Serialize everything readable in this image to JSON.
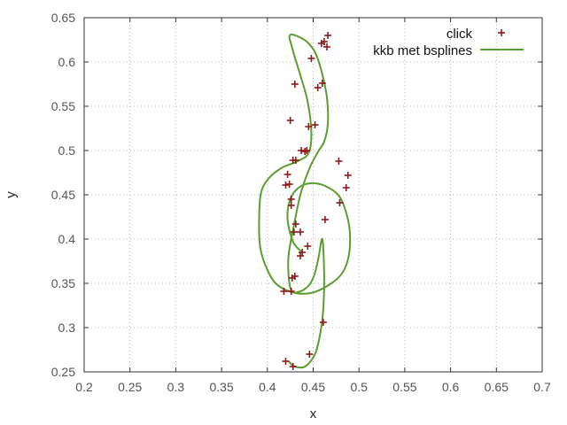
{
  "chart_data": {
    "type": "scatter",
    "xlabel": "x",
    "ylabel": "y",
    "xlim": [
      0.2,
      0.7
    ],
    "ylim": [
      0.25,
      0.65
    ],
    "x_ticks": [
      "0.2",
      "0.25",
      "0.3",
      "0.35",
      "0.4",
      "0.45",
      "0.5",
      "0.55",
      "0.6",
      "0.65",
      "0.7"
    ],
    "y_ticks": [
      "0.25",
      "0.3",
      "0.35",
      "0.4",
      "0.45",
      "0.5",
      "0.55",
      "0.6",
      "0.65"
    ],
    "grid": true,
    "legend_position": "top-right",
    "series": [
      {
        "name": "click",
        "kind": "points",
        "marker": "plus",
        "color": "#8b1a1a",
        "x": [
          0.438,
          0.429,
          0.426,
          0.42,
          0.422,
          0.428,
          0.437,
          0.445,
          0.455,
          0.465,
          0.466,
          0.462,
          0.448,
          0.43,
          0.425,
          0.443,
          0.478,
          0.488,
          0.486,
          0.479,
          0.463,
          0.444,
          0.427,
          0.418,
          0.426,
          0.43,
          0.436,
          0.436,
          0.431,
          0.426,
          0.424,
          0.431,
          0.441,
          0.452,
          0.46,
          0.459,
          0.461,
          0.446,
          0.428,
          0.42
        ],
        "y": [
          0.385,
          0.408,
          0.438,
          0.461,
          0.473,
          0.489,
          0.5,
          0.527,
          0.571,
          0.617,
          0.63,
          0.623,
          0.604,
          0.575,
          0.534,
          0.5,
          0.488,
          0.472,
          0.458,
          0.441,
          0.422,
          0.392,
          0.356,
          0.341,
          0.341,
          0.358,
          0.381,
          0.408,
          0.417,
          0.445,
          0.462,
          0.489,
          0.499,
          0.529,
          0.576,
          0.621,
          0.306,
          0.27,
          0.256,
          0.262
        ]
      },
      {
        "name": "kkb met bsplines",
        "kind": "line",
        "color": "#5a9e2f",
        "x": [
          0.438,
          0.428,
          0.422,
          0.425,
          0.434,
          0.447,
          0.463,
          0.478,
          0.486,
          0.49,
          0.489,
          0.482,
          0.467,
          0.447,
          0.427,
          0.409,
          0.398,
          0.392,
          0.391,
          0.393,
          0.401,
          0.415,
          0.433,
          0.445,
          0.448,
          0.444,
          0.436,
          0.43,
          0.426,
          0.424,
          0.426,
          0.433,
          0.443,
          0.452,
          0.459,
          0.465,
          0.466,
          0.462,
          0.455,
          0.446,
          0.436,
          0.428,
          0.423,
          0.424,
          0.428,
          0.433,
          0.44,
          0.447,
          0.452,
          0.456,
          0.46,
          0.462,
          0.461,
          0.458,
          0.452,
          0.441,
          0.43,
          0.423
        ],
        "y": [
          0.385,
          0.397,
          0.423,
          0.445,
          0.458,
          0.463,
          0.46,
          0.449,
          0.43,
          0.408,
          0.382,
          0.362,
          0.348,
          0.339,
          0.34,
          0.35,
          0.37,
          0.392,
          0.423,
          0.452,
          0.468,
          0.48,
          0.488,
          0.497,
          0.52,
          0.555,
          0.585,
          0.605,
          0.62,
          0.628,
          0.631,
          0.629,
          0.623,
          0.611,
          0.59,
          0.56,
          0.53,
          0.51,
          0.498,
          0.48,
          0.45,
          0.41,
          0.38,
          0.35,
          0.34,
          0.34,
          0.343,
          0.35,
          0.362,
          0.38,
          0.4,
          0.36,
          0.32,
          0.295,
          0.27,
          0.256,
          0.256,
          0.262
        ]
      }
    ]
  }
}
